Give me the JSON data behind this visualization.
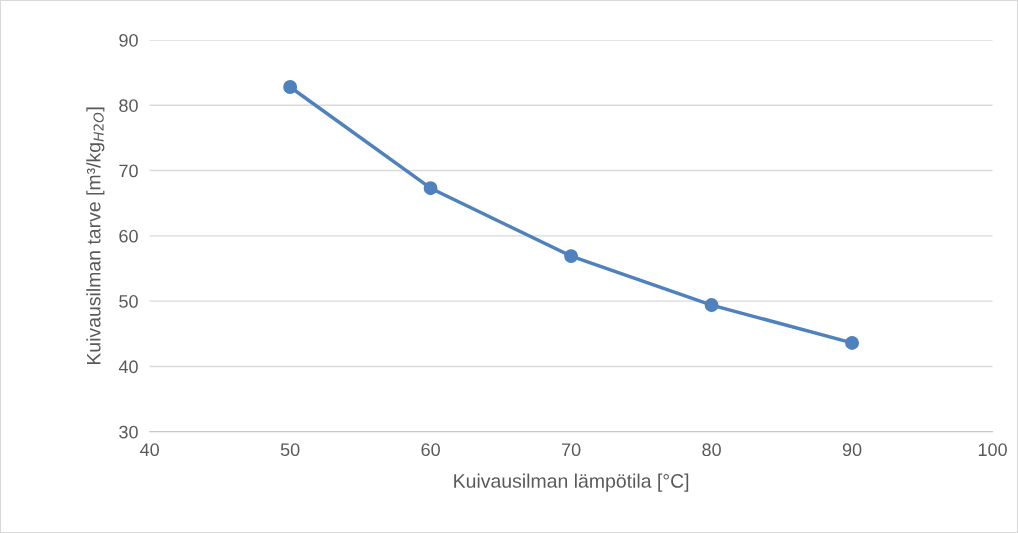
{
  "chart_data": {
    "type": "line",
    "xlabel": "Kuivausilman lämpötila [°C]",
    "ylabel": "Kuivausilman tarve [m³/kg$_{H2O}$]",
    "x": [
      50,
      60,
      70,
      80,
      90
    ],
    "series": [
      {
        "color": "#4f81bd",
        "values": [
          82.8,
          67.3,
          56.9,
          49.4,
          43.6
        ]
      }
    ],
    "xlim": [
      40,
      100
    ],
    "xticks": [
      40,
      50,
      60,
      70,
      80,
      90,
      100
    ],
    "ylim": [
      30,
      90
    ],
    "yticks": [
      30,
      40,
      50,
      60,
      70,
      80,
      90
    ],
    "grid": "y",
    "marker": "circle",
    "line_style": "solid"
  }
}
